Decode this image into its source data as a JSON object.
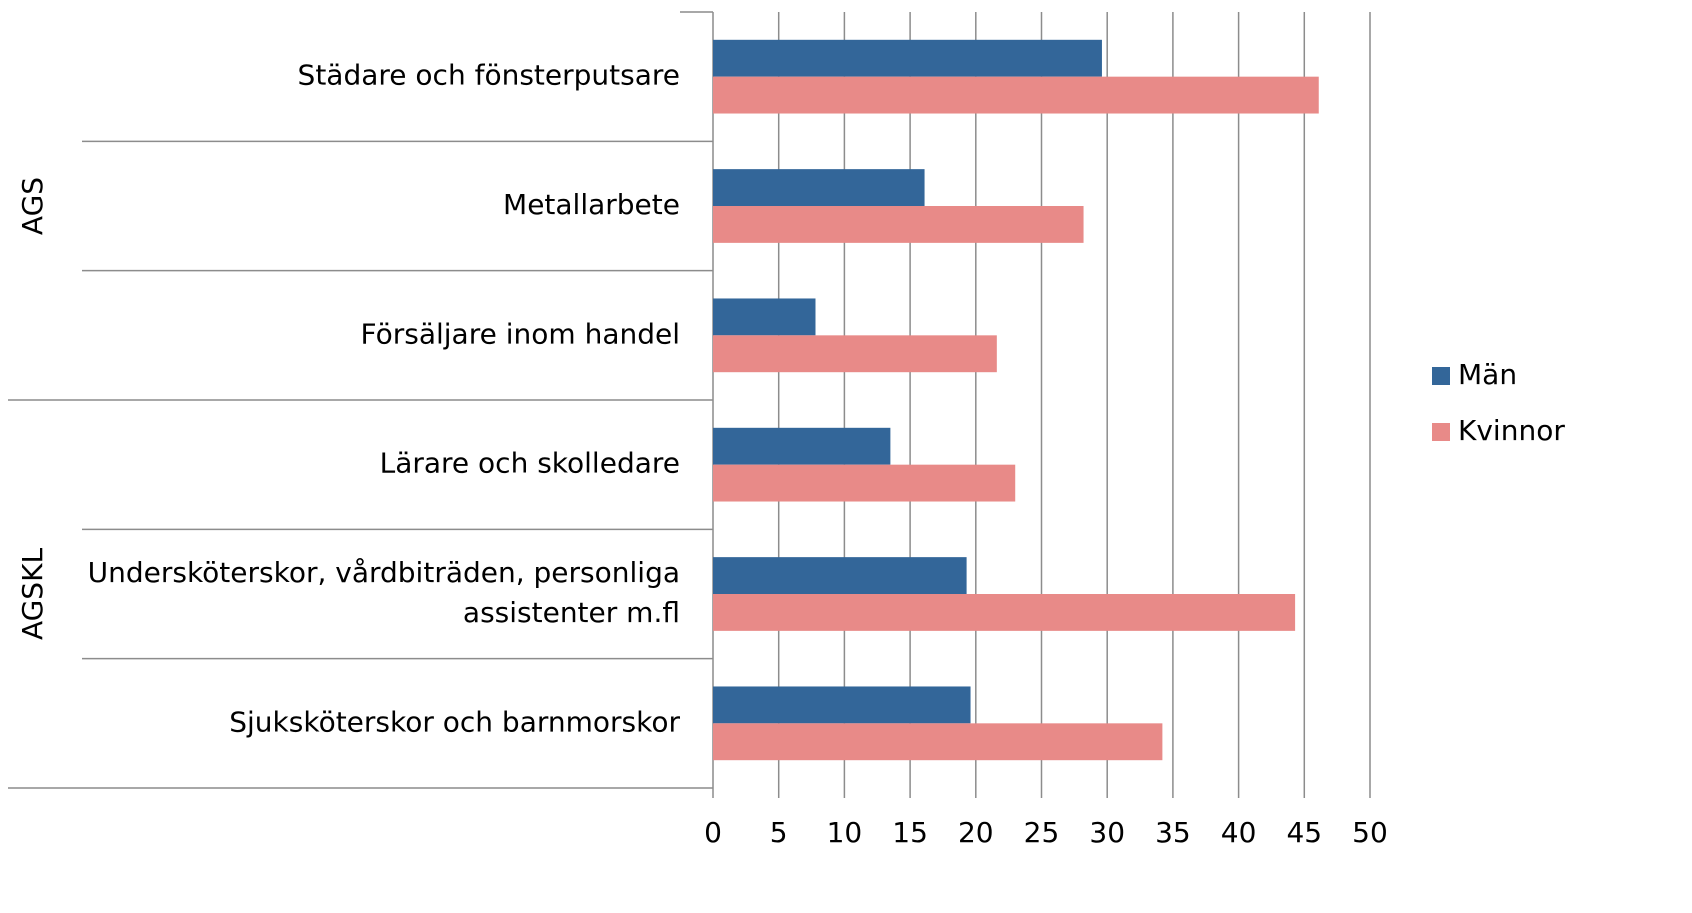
{
  "chart_data": {
    "type": "bar",
    "orientation": "horizontal",
    "groups": [
      {
        "name": "AGS",
        "categories": [
          "Städare och fönsterputsare",
          "Metallarbete",
          "Försäljare inom handel"
        ]
      },
      {
        "name": "AGSKL",
        "categories": [
          "Lärare och skolledare",
          "Undersköterskor, vårdbiträden, personliga\nassistenter m.fl",
          "Sjuksköterskor och barnmorskor"
        ]
      }
    ],
    "series": [
      {
        "name": "Män",
        "color": "#336699",
        "values": [
          29.6,
          16.1,
          7.8,
          13.5,
          19.3,
          19.6
        ]
      },
      {
        "name": "Kvinnor",
        "color": "#e88a88",
        "values": [
          46.1,
          28.2,
          21.6,
          23.0,
          44.3,
          34.2
        ]
      }
    ],
    "xlim": [
      0,
      50
    ],
    "xticks": [
      0,
      5,
      10,
      15,
      20,
      25,
      30,
      35,
      40,
      45,
      50
    ],
    "grid": true,
    "legend": "right"
  }
}
